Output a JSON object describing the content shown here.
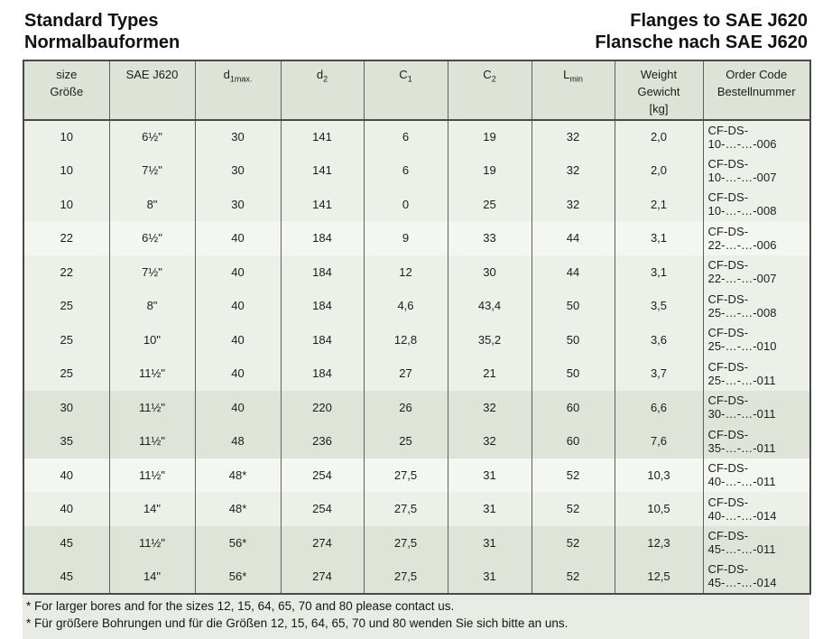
{
  "page": {
    "title_left_line1": "Standard Types",
    "title_left_line2": "Normalbauformen",
    "title_right_line1": "Flanges to SAE J620",
    "title_right_line2": "Flansche nach SAE J620"
  },
  "colors": {
    "header_bg": "#dde3d6",
    "row_light": "#edf0e9",
    "row_lighter": "#f4f6f1",
    "row_dark": "#dfe4d9",
    "notes_bg": "#e9ece5",
    "border": "#4a4a4a"
  },
  "table": {
    "columns": [
      {
        "key": "size",
        "label_lines": [
          "size",
          "Größe"
        ]
      },
      {
        "key": "sae",
        "label_lines": [
          "SAE J620"
        ]
      },
      {
        "key": "d1max",
        "label_base": "d",
        "label_sub": "1max."
      },
      {
        "key": "d2",
        "label_base": "d",
        "label_sub": "2"
      },
      {
        "key": "c1",
        "label_base": "C",
        "label_sub": "1"
      },
      {
        "key": "c2",
        "label_base": "C",
        "label_sub": "2"
      },
      {
        "key": "lmin",
        "label_base": "L",
        "label_sub": "min"
      },
      {
        "key": "weight",
        "label_lines": [
          "Weight",
          "Gewicht",
          "[kg]"
        ]
      },
      {
        "key": "order",
        "label_lines": [
          "Order Code",
          "Bestellnummer"
        ]
      }
    ],
    "rows": [
      {
        "shade": "light",
        "cells": [
          "10",
          "6½\"",
          "30",
          "141",
          "6",
          "19",
          "32",
          "2,0",
          "CF-DS-10-…-…-006"
        ]
      },
      {
        "shade": "light",
        "cells": [
          "10",
          "7½\"",
          "30",
          "141",
          "6",
          "19",
          "32",
          "2,0",
          "CF-DS-10-…-…-007"
        ]
      },
      {
        "shade": "light",
        "cells": [
          "10",
          "8\"",
          "30",
          "141",
          "0",
          "25",
          "32",
          "2,1",
          "CF-DS-10-…-…-008"
        ]
      },
      {
        "shade": "lighter",
        "cells": [
          "22",
          "6½\"",
          "40",
          "184",
          "9",
          "33",
          "44",
          "3,1",
          "CF-DS-22-…-…-006"
        ]
      },
      {
        "shade": "light",
        "cells": [
          "22",
          "7½\"",
          "40",
          "184",
          "12",
          "30",
          "44",
          "3,1",
          "CF-DS-22-…-…-007"
        ]
      },
      {
        "shade": "light",
        "cells": [
          "25",
          "8\"",
          "40",
          "184",
          "4,6",
          "43,4",
          "50",
          "3,5",
          "CF-DS-25-…-…-008"
        ]
      },
      {
        "shade": "light",
        "cells": [
          "25",
          "10\"",
          "40",
          "184",
          "12,8",
          "35,2",
          "50",
          "3,6",
          "CF-DS-25-…-…-010"
        ]
      },
      {
        "shade": "light",
        "cells": [
          "25",
          "11½\"",
          "40",
          "184",
          "27",
          "21",
          "50",
          "3,7",
          "CF-DS-25-…-…-011"
        ]
      },
      {
        "shade": "dark",
        "cells": [
          "30",
          "11½\"",
          "40",
          "220",
          "26",
          "32",
          "60",
          "6,6",
          "CF-DS-30-…-…-011"
        ]
      },
      {
        "shade": "dark",
        "cells": [
          "35",
          "11½\"",
          "48",
          "236",
          "25",
          "32",
          "60",
          "7,6",
          "CF-DS-35-…-…-011"
        ]
      },
      {
        "shade": "lighter",
        "cells": [
          "40",
          "11½\"",
          "48*",
          "254",
          "27,5",
          "31",
          "52",
          "10,3",
          "CF-DS-40-…-…-011"
        ]
      },
      {
        "shade": "light",
        "cells": [
          "40",
          "14\"",
          "48*",
          "254",
          "27,5",
          "31",
          "52",
          "10,5",
          "CF-DS-40-…-…-014"
        ]
      },
      {
        "shade": "dark",
        "cells": [
          "45",
          "11½\"",
          "56*",
          "274",
          "27,5",
          "31",
          "52",
          "12,3",
          "CF-DS-45-…-…-011"
        ]
      },
      {
        "shade": "dark",
        "cells": [
          "45",
          "14\"",
          "56*",
          "274",
          "27,5",
          "31",
          "52",
          "12,5",
          "CF-DS-45-…-…-014"
        ]
      }
    ]
  },
  "footnotes": [
    "* For larger bores and for the sizes 12, 15, 64, 65, 70 and 80 please contact us.",
    "* Für größere Bohrungen und für die Größen 12, 15, 64, 65, 70 und 80 wenden Sie sich bitte an uns."
  ]
}
